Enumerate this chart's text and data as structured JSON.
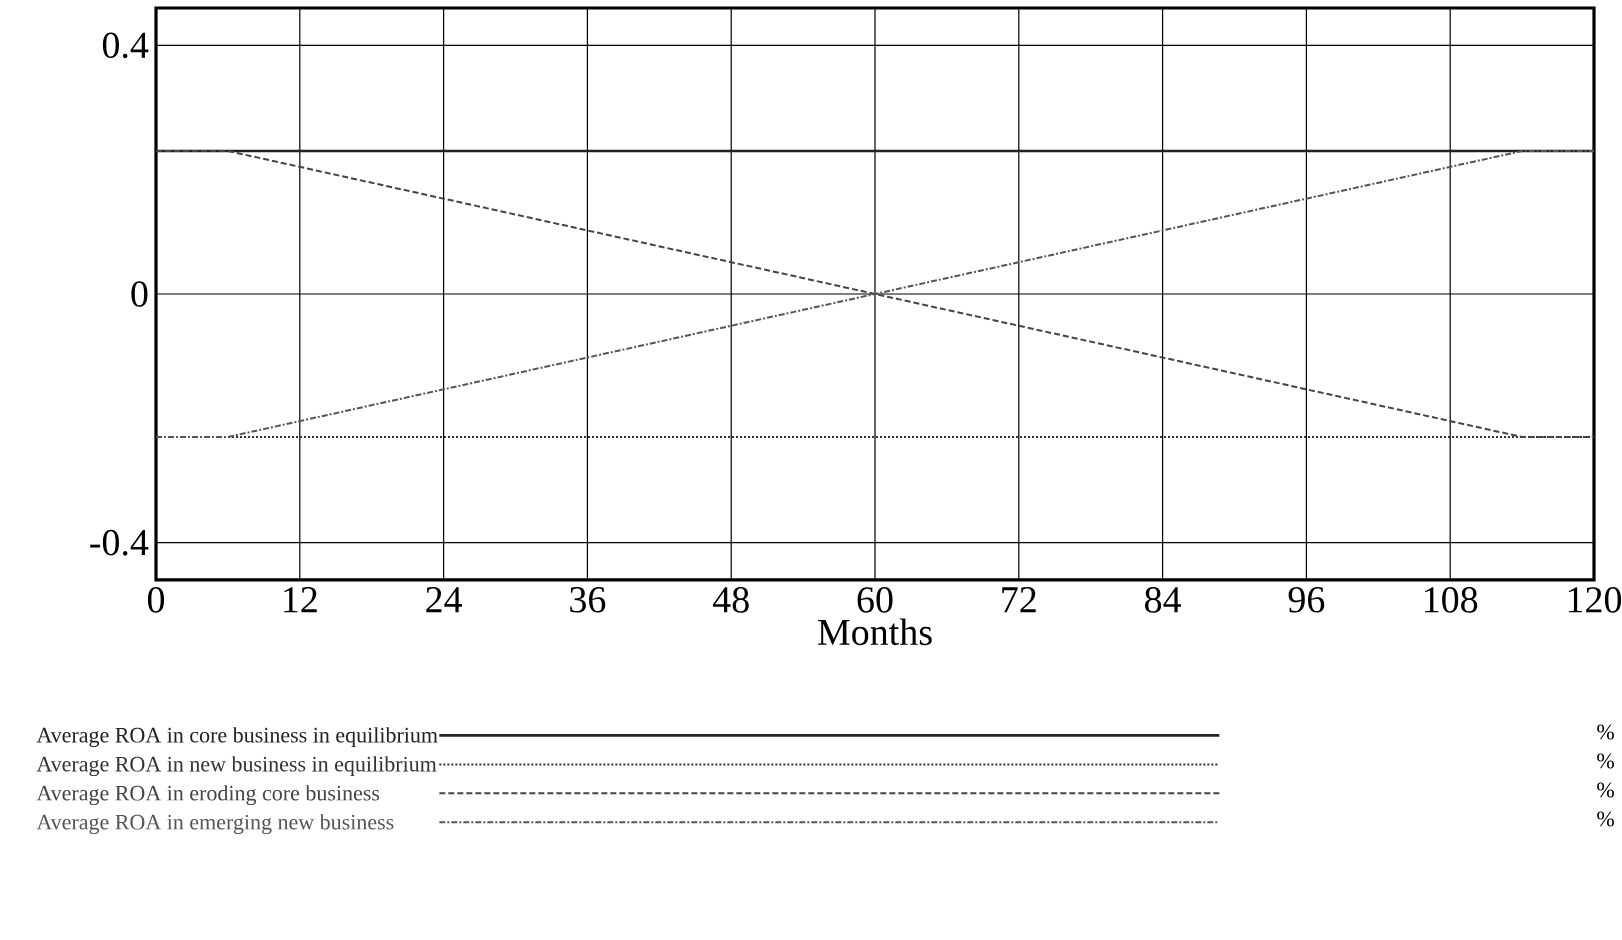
{
  "chart_data": {
    "type": "line",
    "xlabel": "Months",
    "annotations": [
      "%",
      "%",
      "%",
      "%"
    ],
    "xlim": [
      0,
      120
    ],
    "ylim": [
      -0.46,
      0.46
    ],
    "xticks": [
      0,
      12,
      24,
      36,
      48,
      60,
      72,
      84,
      96,
      108,
      120
    ],
    "yticks": [
      {
        "value": -0.4,
        "label": "-0.4"
      },
      0,
      {
        "value": 0.4,
        "label": "0.4"
      }
    ],
    "grid": true,
    "legend": "bottom",
    "series": [
      {
        "name": "Average ROA in core business in equilibrium",
        "color": "#222222",
        "line_style": "solid",
        "x": [
          0,
          12,
          24,
          36,
          48,
          60,
          72,
          84,
          96,
          108,
          120
        ],
        "values": [
          0.23,
          0.23,
          0.23,
          0.23,
          0.23,
          0.23,
          0.23,
          0.23,
          0.23,
          0.23,
          0.23
        ]
      },
      {
        "name": "Average ROA in new business in equilibrium",
        "color": "#333333",
        "line_style": "dotted",
        "x": [
          0,
          12,
          24,
          36,
          48,
          60,
          72,
          84,
          96,
          108,
          120
        ],
        "values": [
          -0.23,
          -0.23,
          -0.23,
          -0.23,
          -0.23,
          -0.23,
          -0.23,
          -0.23,
          -0.23,
          -0.23,
          -0.23
        ]
      },
      {
        "name": "Average ROA in eroding core business",
        "color": "#444444",
        "line_style": "dashed",
        "x": [
          0,
          6,
          60,
          114,
          120
        ],
        "values": [
          0.23,
          0.23,
          0,
          -0.23,
          -0.23
        ]
      },
      {
        "name": "Average ROA in emerging new business",
        "color": "#555555",
        "line_style": "dashdotted",
        "x": [
          0,
          6,
          60,
          114,
          120
        ],
        "values": [
          -0.23,
          -0.23,
          0,
          0.23,
          0.23
        ]
      }
    ]
  }
}
